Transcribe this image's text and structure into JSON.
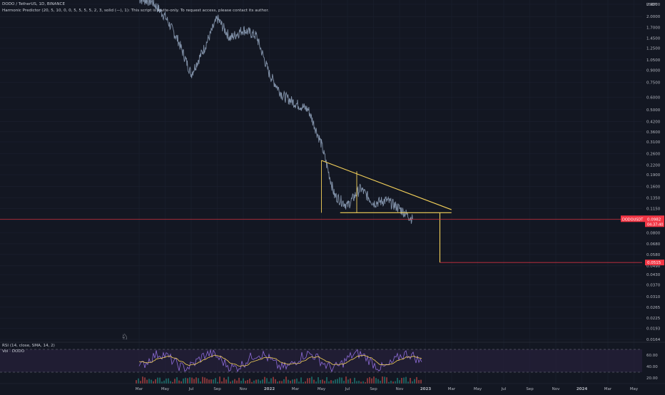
{
  "header": {
    "symbol_line": "DODO / TetherUS, 1D, BINANCE",
    "indicator_line": "Harmonic Predictor (20, 5, 10, 0, 0, 5, 5, 5, 5, 2, 3, solid (—), 1): This script is invite-only. To request access, please contact its author."
  },
  "rsi_pane": {
    "title": "RSI (14, close, SMA, 14, 2)",
    "volume_label": "Vol · DODO",
    "ticks": [
      "60.00",
      "40.00",
      "20.00"
    ],
    "upper_band": 70,
    "lower_band": 30
  },
  "price_axis": {
    "currency": "USDT",
    "scale": "log",
    "ticks": [
      "2.4000",
      "2.0000",
      "1.7000",
      "1.4500",
      "1.2500",
      "1.0500",
      "0.9000",
      "0.7500",
      "0.6000",
      "0.5000",
      "0.4200",
      "0.3600",
      "0.3100",
      "0.2600",
      "0.2200",
      "0.1900",
      "0.1600",
      "0.1350",
      "0.1150",
      "0.0960",
      "0.0800",
      "0.0680",
      "0.0580",
      "0.0490",
      "0.0430",
      "0.0370",
      "0.0310",
      "0.0265",
      "0.0225",
      "0.0193",
      "0.0164"
    ]
  },
  "price_labels": {
    "current_name": "DODOUSDT",
    "current_value": "0.0982",
    "current_countdown": "04:37:40",
    "target_value": "0.0515"
  },
  "time_axis": {
    "labels": [
      "Mar",
      "May",
      "Jul",
      "Sep",
      "Nov",
      "2022",
      "Mar",
      "May",
      "Jul",
      "Sep",
      "Nov",
      "2023",
      "Mar",
      "May",
      "Jul",
      "Sep",
      "Nov",
      "2024",
      "Mar",
      "May"
    ]
  },
  "colors": {
    "background": "#131722",
    "price_line": "#7f8fa6",
    "pattern": "#f5d25a",
    "current_price": "#f23645",
    "rsi": "#8e6cd8",
    "rsi_ma": "#f5d25a",
    "rsi_band": "#2a2140"
  },
  "chart_data": {
    "type": "line",
    "title": "DODO / TetherUS, 1D, BINANCE",
    "y_scale": "log",
    "ylim": [
      0.0164,
      2.4
    ],
    "x_range": [
      "2021-03",
      "2024-05"
    ],
    "series": [
      {
        "name": "DODO / TetherUS",
        "x": [
          "2021-03",
          "2021-04",
          "2021-05",
          "2021-06",
          "2021-07",
          "2021-08",
          "2021-09",
          "2021-10",
          "2021-11",
          "2021-12",
          "2022-01",
          "2022-02",
          "2022-03",
          "2022-04",
          "2022-05",
          "2022-06",
          "2022-07",
          "2022-08",
          "2022-09",
          "2022-10",
          "2022-11",
          "2022-12"
        ],
        "values": [
          2.6,
          2.5,
          2.0,
          1.4,
          0.85,
          1.25,
          1.95,
          1.45,
          1.65,
          1.5,
          0.85,
          0.62,
          0.55,
          0.5,
          0.3,
          0.14,
          0.12,
          0.155,
          0.125,
          0.13,
          0.115,
          0.098
        ]
      }
    ],
    "pattern": {
      "resistance": [
        {
          "x": "2022-05",
          "y": 0.235
        },
        {
          "x": "2023-02",
          "y": 0.113
        }
      ],
      "support": [
        {
          "x": "2022-06",
          "y": 0.108
        },
        {
          "x": "2023-02",
          "y": 0.108
        }
      ],
      "projection_from": {
        "x": "2023-01",
        "y": 0.108
      },
      "projection_to": {
        "x": "2023-01",
        "y": 0.0515
      }
    },
    "rsi": {
      "title": "RSI (14, close, SMA, 14, 2)",
      "ylim": [
        20,
        80
      ],
      "bands": [
        30,
        70
      ]
    }
  }
}
